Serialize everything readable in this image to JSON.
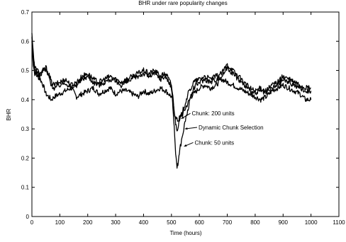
{
  "chart_data": {
    "type": "line",
    "title": "BHR under rare popularity changes",
    "xlabel": "Time (hours)",
    "ylabel": "BHR",
    "xlim": [
      0,
      1100
    ],
    "ylim": [
      0,
      0.7
    ],
    "xticks": [
      0,
      100,
      200,
      300,
      400,
      500,
      600,
      700,
      800,
      900,
      1000,
      1100
    ],
    "yticks": [
      0,
      0.1,
      0.2,
      0.3,
      0.4,
      0.5,
      0.6,
      0.7
    ],
    "xtick_labels": [
      "0",
      "100",
      "200",
      "300",
      "400",
      "500",
      "600",
      "700",
      "800",
      "900",
      "1000",
      "1100"
    ],
    "ytick_labels": [
      "0",
      "0.1",
      "0.2",
      "0.3",
      "0.4",
      "0.5",
      "0.6",
      "0.7"
    ],
    "grid": false,
    "legend": "none",
    "line_color": "#000000",
    "series": [
      {
        "name": "Chunk: 200 units",
        "x": [
          0,
          5,
          10,
          20,
          30,
          40,
          50,
          60,
          70,
          80,
          100,
          120,
          140,
          160,
          180,
          200,
          220,
          240,
          260,
          280,
          300,
          320,
          340,
          360,
          380,
          400,
          420,
          440,
          460,
          480,
          490,
          500,
          505,
          510,
          515,
          520,
          525,
          530,
          540,
          550,
          560,
          570,
          580,
          600,
          620,
          640,
          660,
          680,
          700,
          720,
          740,
          760,
          780,
          800,
          820,
          840,
          860,
          880,
          900,
          920,
          940,
          960,
          980,
          1000
        ],
        "y": [
          0.6,
          0.52,
          0.49,
          0.48,
          0.47,
          0.45,
          0.42,
          0.41,
          0.4,
          0.41,
          0.42,
          0.43,
          0.44,
          0.41,
          0.42,
          0.43,
          0.44,
          0.42,
          0.43,
          0.44,
          0.42,
          0.43,
          0.43,
          0.42,
          0.41,
          0.43,
          0.42,
          0.43,
          0.44,
          0.43,
          0.42,
          0.41,
          0.39,
          0.36,
          0.34,
          0.33,
          0.33,
          0.34,
          0.35,
          0.37,
          0.39,
          0.41,
          0.42,
          0.44,
          0.45,
          0.44,
          0.45,
          0.47,
          0.46,
          0.45,
          0.44,
          0.43,
          0.42,
          0.41,
          0.4,
          0.41,
          0.43,
          0.44,
          0.45,
          0.44,
          0.43,
          0.42,
          0.4,
          0.4
        ]
      },
      {
        "name": "Dynamic Chunk Selection",
        "x": [
          0,
          5,
          10,
          20,
          30,
          40,
          50,
          60,
          70,
          80,
          100,
          120,
          140,
          160,
          180,
          200,
          220,
          240,
          260,
          280,
          300,
          320,
          340,
          360,
          380,
          400,
          420,
          440,
          460,
          480,
          490,
          500,
          505,
          510,
          515,
          520,
          525,
          530,
          540,
          550,
          560,
          570,
          580,
          600,
          620,
          640,
          660,
          680,
          700,
          720,
          740,
          760,
          780,
          800,
          820,
          840,
          860,
          880,
          900,
          920,
          940,
          960,
          980,
          1000
        ],
        "y": [
          0.61,
          0.55,
          0.51,
          0.5,
          0.49,
          0.5,
          0.51,
          0.49,
          0.46,
          0.45,
          0.46,
          0.47,
          0.45,
          0.46,
          0.48,
          0.49,
          0.47,
          0.46,
          0.47,
          0.48,
          0.47,
          0.46,
          0.47,
          0.48,
          0.49,
          0.5,
          0.49,
          0.5,
          0.48,
          0.49,
          0.47,
          0.45,
          0.41,
          0.36,
          0.32,
          0.3,
          0.31,
          0.33,
          0.36,
          0.39,
          0.42,
          0.44,
          0.46,
          0.47,
          0.48,
          0.47,
          0.48,
          0.49,
          0.52,
          0.5,
          0.48,
          0.46,
          0.44,
          0.43,
          0.44,
          0.43,
          0.45,
          0.46,
          0.48,
          0.47,
          0.46,
          0.45,
          0.44,
          0.44
        ]
      },
      {
        "name": "Chunk: 50 units",
        "x": [
          0,
          5,
          10,
          20,
          30,
          40,
          50,
          60,
          70,
          80,
          100,
          120,
          140,
          160,
          180,
          200,
          220,
          240,
          260,
          280,
          300,
          320,
          340,
          360,
          380,
          400,
          420,
          440,
          460,
          480,
          490,
          500,
          505,
          510,
          515,
          520,
          525,
          530,
          540,
          550,
          560,
          570,
          580,
          600,
          620,
          640,
          660,
          680,
          700,
          720,
          740,
          760,
          780,
          800,
          820,
          840,
          860,
          880,
          900,
          920,
          940,
          960,
          980,
          1000
        ],
        "y": [
          0.62,
          0.56,
          0.5,
          0.49,
          0.48,
          0.5,
          0.5,
          0.48,
          0.45,
          0.44,
          0.45,
          0.46,
          0.44,
          0.45,
          0.47,
          0.48,
          0.46,
          0.45,
          0.46,
          0.47,
          0.46,
          0.45,
          0.46,
          0.47,
          0.48,
          0.49,
          0.48,
          0.49,
          0.47,
          0.48,
          0.46,
          0.44,
          0.38,
          0.3,
          0.22,
          0.17,
          0.19,
          0.23,
          0.28,
          0.33,
          0.37,
          0.41,
          0.44,
          0.46,
          0.47,
          0.46,
          0.47,
          0.48,
          0.51,
          0.49,
          0.47,
          0.45,
          0.43,
          0.42,
          0.43,
          0.42,
          0.44,
          0.45,
          0.47,
          0.46,
          0.45,
          0.44,
          0.43,
          0.43
        ]
      }
    ],
    "annotations": [
      {
        "text": "Chunk: 200 units",
        "x": 573,
        "y": 0.346,
        "target_x": 535,
        "target_y": 0.335
      },
      {
        "text": "Dynamic Chunk Selection",
        "x": 597,
        "y": 0.298,
        "target_x": 548,
        "target_y": 0.3
      },
      {
        "text": "Chunk: 50 units",
        "x": 583,
        "y": 0.246,
        "target_x": 545,
        "target_y": 0.24
      }
    ]
  }
}
